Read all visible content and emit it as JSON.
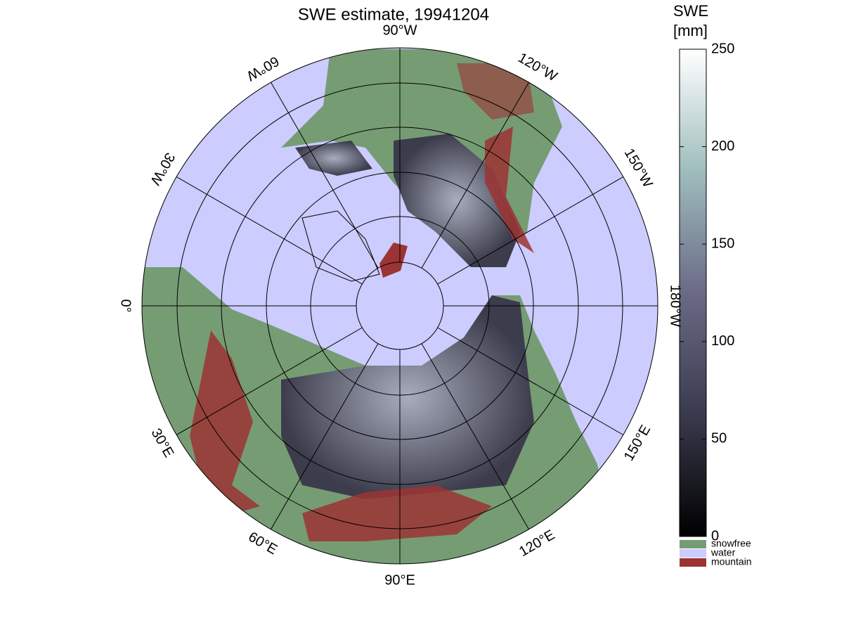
{
  "map": {
    "title": "SWE estimate, 19941204",
    "longitude_labels": [
      "90°W",
      "120°W",
      "150°W",
      "180°W",
      "150°E",
      "120°E",
      "90°E",
      "60°E",
      "30°E",
      "0°",
      "30°W",
      "60°W"
    ],
    "colorbar": {
      "title": [
        "SWE",
        "[mm]"
      ],
      "lim": [
        0,
        250
      ],
      "ticks": [
        0,
        50,
        100,
        150,
        200,
        250
      ]
    },
    "classes": [
      {
        "name": "snowfree",
        "color": "#769c74"
      },
      {
        "name": "water",
        "color": "#ccccff"
      },
      {
        "name": "mountain",
        "color": "#9c3434"
      }
    ]
  }
}
